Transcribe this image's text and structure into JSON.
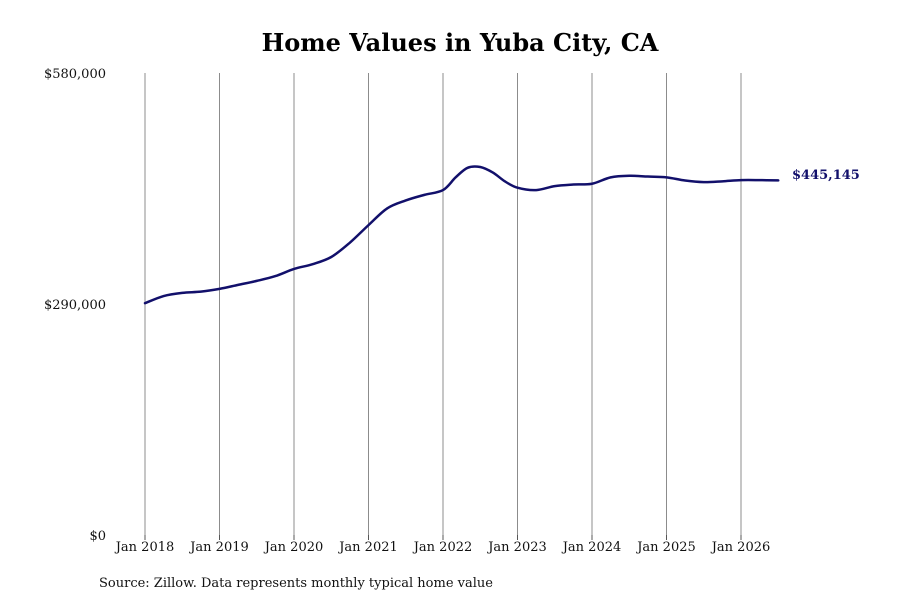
{
  "chart_data": {
    "type": "line",
    "title": "Home Values in Yuba City, CA",
    "xlabel": "",
    "ylabel": "",
    "ylim": [
      0,
      580000
    ],
    "y_ticks": [
      "$580,000",
      "$290,000",
      "$0"
    ],
    "y_tick_values": [
      580000,
      290000,
      0
    ],
    "x_ticks": [
      "Jan 2018",
      "Jan 2019",
      "Jan 2020",
      "Jan 2021",
      "Jan 2022",
      "Jan 2023",
      "Jan 2024",
      "Jan 2025",
      "Jan 2026"
    ],
    "x_tick_values": [
      2018,
      2019,
      2020,
      2021,
      2022,
      2023,
      2024,
      2025,
      2026
    ],
    "xlim": [
      2018,
      2026.5
    ],
    "grid": "vertical",
    "line_color": "#12106b",
    "end_label": "$445,145",
    "series": [
      {
        "x": [
          2018.0,
          2018.25,
          2018.5,
          2018.75,
          2019.0,
          2019.25,
          2019.5,
          2019.75,
          2020.0,
          2020.25,
          2020.5,
          2020.75,
          2021.0,
          2021.25,
          2021.5,
          2021.75,
          2022.0,
          2022.17,
          2022.33,
          2022.5,
          2022.67,
          2022.83,
          2023.0,
          2023.25,
          2023.5,
          2023.75,
          2024.0,
          2024.25,
          2024.5,
          2024.75,
          2025.0,
          2025.25,
          2025.5,
          2025.75,
          2026.0,
          2026.25,
          2026.5
        ],
        "values": [
          291000,
          300000,
          304000,
          305500,
          309000,
          314000,
          319000,
          325000,
          334000,
          340000,
          349000,
          367000,
          389000,
          410000,
          420000,
          427000,
          433000,
          449000,
          461000,
          462000,
          455000,
          444000,
          436000,
          433000,
          438000,
          440000,
          441000,
          449000,
          451000,
          450000,
          449000,
          445000,
          443000,
          444000,
          445500,
          445500,
          445145
        ]
      }
    ]
  },
  "footer": {
    "source": "Source: Zillow. Data represents monthly typical home value"
  }
}
